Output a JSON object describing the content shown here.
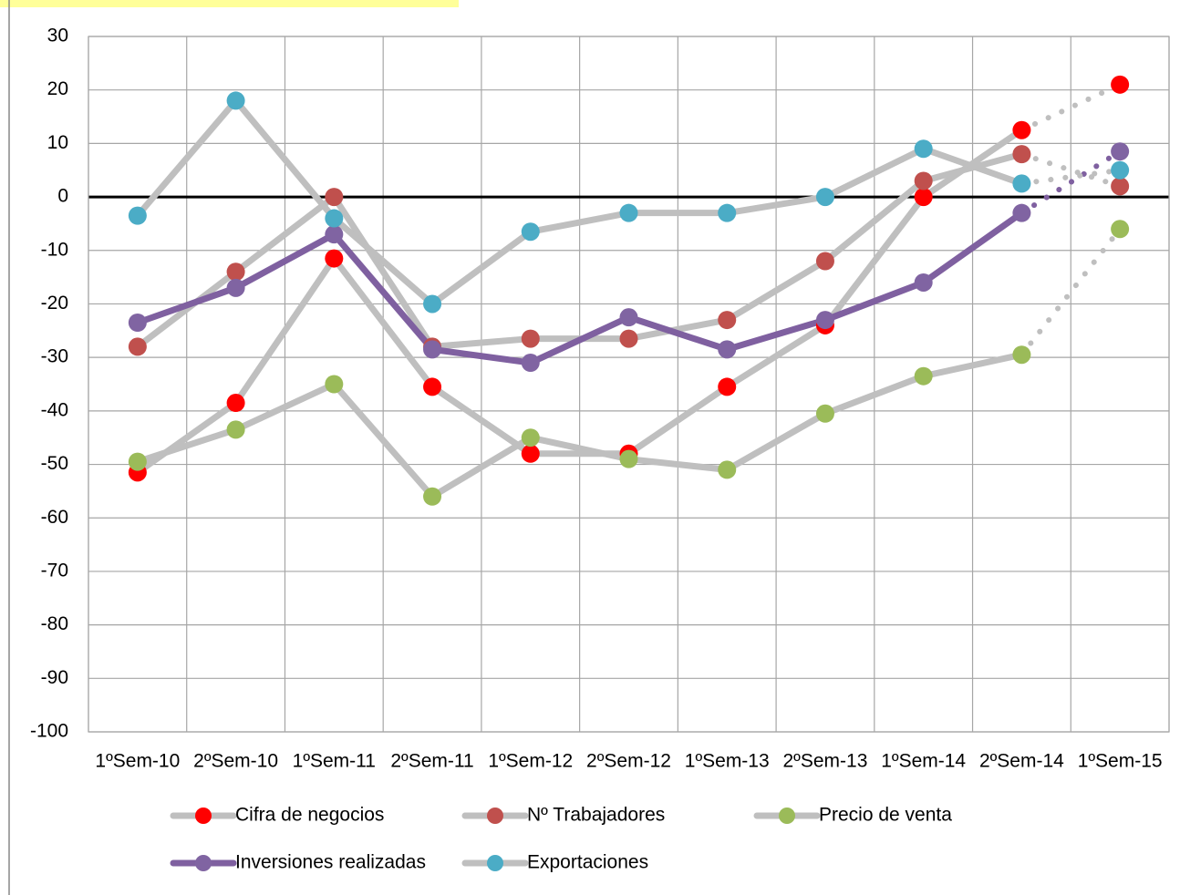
{
  "chart_data": {
    "type": "line",
    "categories": [
      "1ºSem-10",
      "2ºSem-10",
      "1ºSem-11",
      "2ºSem-11",
      "1ºSem-12",
      "2ºSem-12",
      "1ºSem-13",
      "2ºSem-13",
      "1ºSem-14",
      "2ºSem-14",
      "1ºSem-15"
    ],
    "series": [
      {
        "name": "Cifra de negocios",
        "color": "#ff0000",
        "line_color": "#bfbfbf",
        "values": [
          -51.5,
          -38.5,
          -11.5,
          -35.5,
          -48,
          -48,
          -35.5,
          -24,
          0,
          12.5,
          21
        ]
      },
      {
        "name": "Nº Trabajadores",
        "color": "#c0504d",
        "line_color": "#bfbfbf",
        "values": [
          -28,
          -14,
          0,
          -28,
          -26.5,
          -26.5,
          -23,
          -12,
          3,
          8,
          2
        ]
      },
      {
        "name": "Precio de venta",
        "color": "#9bbb59",
        "line_color": "#bfbfbf",
        "values": [
          -49.5,
          -43.5,
          -35,
          -56,
          -45,
          -49,
          -51,
          -40.5,
          -33.5,
          -29.5,
          -6
        ]
      },
      {
        "name": "Inversiones realizadas",
        "color": "#8064a2",
        "line_color": "#7f60a0",
        "values": [
          -23.5,
          -17,
          -7,
          -28.5,
          -31,
          -22.5,
          -28.5,
          -23,
          -16,
          -3,
          8.5
        ]
      },
      {
        "name": "Exportaciones",
        "color": "#4bacc6",
        "line_color": "#bfbfbf",
        "values": [
          -3.5,
          18,
          -4,
          -20,
          -6.5,
          -3,
          -3,
          0,
          9,
          2.5,
          5
        ]
      }
    ],
    "ylim": [
      -100,
      30
    ],
    "yticks": [
      30,
      20,
      10,
      0,
      -10,
      -20,
      -30,
      -40,
      -50,
      -60,
      -70,
      -80,
      -90,
      -100
    ],
    "grid": true
  }
}
